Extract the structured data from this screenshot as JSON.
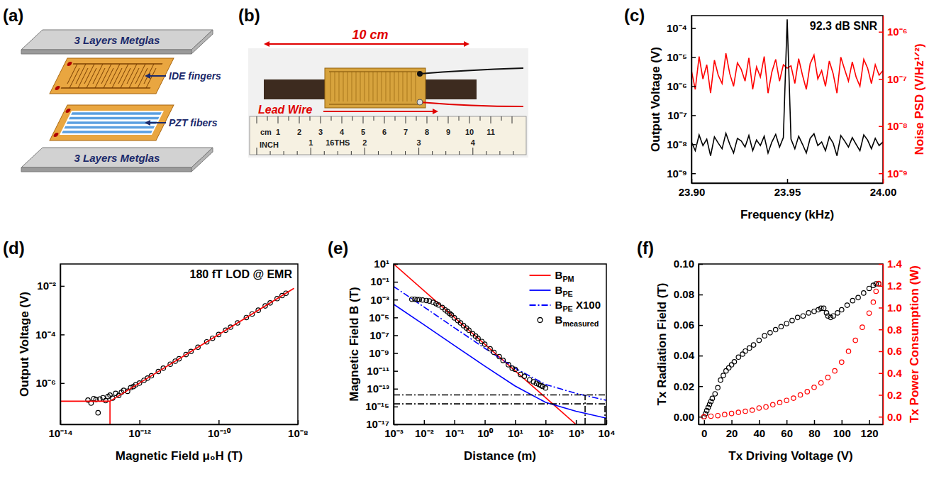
{
  "chart_data": [
    {
      "type": "line",
      "panel_label": "(c)",
      "xlabel": "Frequency (kHz)",
      "ylabel": "Output Voltage (V)",
      "y2label": "Noise PSD (V/Hz¹ᐟ²)",
      "annotations": [
        "92.3 dB SNR"
      ],
      "log": "y",
      "x": [
        23.9,
        23.902,
        23.904,
        23.906,
        23.908,
        23.91,
        23.912,
        23.914,
        23.916,
        23.918,
        23.92,
        23.922,
        23.924,
        23.926,
        23.928,
        23.93,
        23.932,
        23.934,
        23.936,
        23.938,
        23.94,
        23.942,
        23.944,
        23.946,
        23.948,
        23.95,
        23.952,
        23.954,
        23.956,
        23.958,
        23.96,
        23.962,
        23.964,
        23.966,
        23.968,
        23.97,
        23.972,
        23.974,
        23.976,
        23.978,
        23.98,
        23.982,
        23.984,
        23.986,
        23.988,
        23.99,
        23.992,
        23.994,
        23.996,
        23.998,
        24.0
      ],
      "xlim": [
        23.9,
        24.0
      ],
      "xticks": [
        {
          "value": 23.9,
          "label": "23.90"
        },
        {
          "value": 23.95,
          "label": "23.95"
        },
        {
          "value": 24.0,
          "label": "24.00"
        }
      ],
      "ylim": [
        4.6e-10,
        0.00027
      ],
      "yticks": [
        {
          "value": 1e-09,
          "label": "10⁻⁹"
        },
        {
          "value": 1e-08,
          "label": "10⁻⁸"
        },
        {
          "value": 1e-07,
          "label": "10⁻⁷"
        },
        {
          "value": 1e-06,
          "label": "10⁻⁶"
        },
        {
          "value": 1e-05,
          "label": "10⁻⁵"
        },
        {
          "value": 0.0001,
          "label": "10⁻⁴"
        }
      ],
      "y2lim": [
        6.2e-10,
        2.2e-06
      ],
      "y2ticks": [
        {
          "value": 1e-09,
          "label": "10⁻⁹"
        },
        {
          "value": 1e-08,
          "label": "10⁻⁸"
        },
        {
          "value": 1e-07,
          "label": "10⁻⁷"
        },
        {
          "value": 1e-06,
          "label": "10⁻⁶"
        }
      ],
      "series": [
        {
          "color": "#ff0000",
          "axis": "y2",
          "line_style": "solid",
          "values": [
            1.5e-07,
            6e-08,
            3e-07,
            1e-07,
            2e-07,
            5e-08,
            2.5e-07,
            1.2e-07,
            8e-08,
            3.5e-07,
            1.3e-07,
            7e-08,
            2.2e-07,
            1.6e-07,
            9e-08,
            2.8e-07,
            6e-08,
            1.8e-07,
            1.1e-07,
            3e-07,
            5e-08,
            1.4e-07,
            2.6e-07,
            9e-08,
            2e-07,
            1.7e-07,
            1.9e-07,
            8e-08,
            2.7e-07,
            1.2e-07,
            6e-08,
            2.1e-07,
            3.2e-07,
            1e-07,
            1.5e-07,
            7e-08,
            2.4e-07,
            1.3e-07,
            5e-08,
            2.9e-07,
            1.6e-07,
            9e-08,
            2.3e-07,
            1.1e-07,
            7e-08,
            2.6e-07,
            1.7e-07,
            8e-08,
            2e-07,
            1.2e-07,
            1.5e-07
          ]
        },
        {
          "color": "#000000",
          "line_style": "solid",
          "values": [
            1.2e-08,
            6e-09,
            2.1e-08,
            9e-09,
            1.5e-08,
            4e-09,
            1.8e-08,
            1.1e-08,
            7e-09,
            2.4e-08,
            1e-08,
            5e-09,
            1.6e-08,
            1.3e-08,
            8e-09,
            2e-08,
            6e-09,
            1.4e-08,
            9e-09,
            1.9e-08,
            5e-09,
            1.2e-08,
            2.2e-08,
            8e-09,
            1.7e-08,
            0.0002,
            1.5e-08,
            7e-09,
            1.9e-08,
            1e-08,
            5e-09,
            1.6e-08,
            2.3e-08,
            9e-09,
            1.2e-08,
            6e-09,
            1.8e-08,
            1.1e-08,
            4e-09,
            2e-08,
            1.3e-08,
            8e-09,
            1.7e-08,
            1e-08,
            6e-09,
            2.1e-08,
            1.4e-08,
            7e-09,
            1.6e-08,
            9e-09,
            1.2e-08
          ]
        }
      ]
    },
    {
      "type": "scatter",
      "panel_label": "(d)",
      "xlabel": "Magnetic Field μ₀H (T)",
      "ylabel": "Output Voltage (V)",
      "annotations": [
        "180 fT LOD @ EMR"
      ],
      "log": true,
      "xlim": [
        1e-14,
        1e-08
      ],
      "xticks": [
        {
          "value": 1e-14,
          "label": "10⁻¹⁴"
        },
        {
          "value": 1e-12,
          "label": "10⁻¹²"
        },
        {
          "value": 1e-10,
          "label": "10⁻¹⁰"
        },
        {
          "value": 1e-08,
          "label": "10⁻⁸"
        }
      ],
      "ylim": [
        2e-08,
        0.08
      ],
      "yticks": [
        {
          "value": 1e-06,
          "label": "10⁻⁶"
        },
        {
          "value": 0.0001,
          "label": "10⁻⁴"
        },
        {
          "value": 0.01,
          "label": "10⁻²"
        }
      ],
      "series": [
        {
          "color": "#000000",
          "marker": "circle",
          "x": [
            5e-14,
            6e-14,
            7e-14,
            8e-14,
            9e-14,
            1e-13,
            1.2e-13,
            1.4e-13,
            1.6e-13,
            1.8e-13,
            2.1e-13,
            2.5e-13,
            3e-13,
            3.5e-13,
            4e-13,
            5e-13,
            6e-13,
            7e-13,
            8e-13,
            1e-12,
            1.3e-12,
            1.6e-12,
            2e-12,
            3e-12,
            4e-12,
            6e-12,
            8e-12,
            1e-11,
            1.5e-11,
            2e-11,
            3e-11,
            5e-11,
            7e-11,
            1e-10,
            1.5e-10,
            2e-10,
            3e-10,
            5e-10,
            7e-10,
            1e-09,
            1.5e-09,
            2e-09,
            3e-09,
            4e-09,
            5e-09
          ],
          "values": [
            2e-07,
            1.5e-07,
            2.3e-07,
            2.1e-07,
            6e-08,
            2.2e-07,
            2.5e-07,
            1.9e-07,
            2.8e-07,
            3.2e-07,
            2.4e-07,
            3.8e-07,
            3.1e-07,
            4.2e-07,
            5e-07,
            4.6e-07,
            6.5e-07,
            7.2e-07,
            8.5e-07,
            1e-06,
            1.3e-06,
            1.6e-06,
            2e-06,
            3e-06,
            4.1e-06,
            6e-06,
            8e-06,
            1e-05,
            1.5e-05,
            2e-05,
            3e-05,
            5e-05,
            7e-05,
            0.0001,
            0.00015,
            0.0002,
            0.0003,
            0.0005,
            0.0007,
            0.001,
            0.0015,
            0.002,
            0.003,
            0.004,
            0.005
          ]
        },
        {
          "type": "line",
          "color": "#ff0000",
          "line_style": "solid",
          "x": [
            1e-14,
            1.8e-13,
            1.8e-13
          ],
          "values": [
            1.8e-07,
            1.8e-07,
            2e-08
          ]
        },
        {
          "type": "line",
          "color": "#ff0000",
          "line_style": "solid",
          "x": [
            1.8e-13,
            8e-09
          ],
          "values": [
            1.8e-07,
            0.008
          ]
        }
      ]
    },
    {
      "type": "line",
      "panel_label": "(e)",
      "xlabel": "Distance (m)",
      "ylabel": "Magnetic Field B (T)",
      "log": true,
      "legend": "upper right",
      "xlim": [
        0.001,
        10000.0
      ],
      "xticks": [
        {
          "value": 0.001,
          "label": "10⁻³"
        },
        {
          "value": 0.01,
          "label": "10⁻²"
        },
        {
          "value": 0.1,
          "label": "10⁻¹"
        },
        {
          "value": 1,
          "label": "10⁰"
        },
        {
          "value": 10,
          "label": "10¹"
        },
        {
          "value": 100,
          "label": "10²"
        },
        {
          "value": 1000,
          "label": "10³"
        },
        {
          "value": 10000,
          "label": "10⁴"
        }
      ],
      "ylim": [
        1e-17,
        10
      ],
      "yticks": [
        {
          "value": 1e-17,
          "label": "10⁻¹⁷"
        },
        {
          "value": 1e-15,
          "label": "10⁻¹⁵"
        },
        {
          "value": 1e-13,
          "label": "10⁻¹³"
        },
        {
          "value": 1e-11,
          "label": "10⁻¹¹"
        },
        {
          "value": 1e-09,
          "label": "10⁻⁹"
        },
        {
          "value": 1e-07,
          "label": "10⁻⁷"
        },
        {
          "value": 1e-05,
          "label": "10⁻⁵"
        },
        {
          "value": 0.001,
          "label": "10⁻³"
        },
        {
          "value": 0.1,
          "label": "10⁻¹"
        },
        {
          "value": 10,
          "label": "10¹"
        }
      ],
      "series": [
        {
          "name": "BPM",
          "color": "#ff0000",
          "line_style": "solid",
          "x": [
            0.001,
            1000.0
          ],
          "values": [
            10,
            1e-17
          ]
        },
        {
          "name": "BPE",
          "color": "#0000ff",
          "line_style": "solid",
          "x": [
            0.001,
            0.01,
            0.1,
            1,
            10,
            100,
            1000,
            10000
          ],
          "values": [
            0.0003,
            1.5e-06,
            7e-09,
            3.5e-11,
            2e-13,
            3e-15,
            3e-16,
            5e-17
          ]
        },
        {
          "name": "BPE X100",
          "color": "#0000ff",
          "line_style": "dashdot",
          "x": [
            0.001,
            0.01,
            0.1,
            1,
            10,
            100,
            1000,
            10000
          ],
          "values": [
            0.03,
            0.00015,
            7e-07,
            3.5e-09,
            2e-11,
            3e-13,
            3e-14,
            5e-15
          ]
        },
        {
          "name": "Bmeasured",
          "type": "scatter",
          "marker": "circle",
          "color": "#000000",
          "x": [
            0.004,
            0.005,
            0.006,
            0.007,
            0.009,
            0.012,
            0.015,
            0.02,
            0.025,
            0.03,
            0.04,
            0.05,
            0.06,
            0.07,
            0.08,
            0.1,
            0.13,
            0.16,
            0.2,
            0.25,
            0.3,
            0.4,
            0.5,
            0.6,
            0.8,
            1,
            1.5,
            2,
            3,
            4,
            6,
            8,
            10,
            15,
            20,
            30,
            40,
            50,
            60,
            70,
            80,
            100
          ],
          "values": [
            0.0011,
            0.0011,
            0.001,
            0.001,
            0.0009,
            0.0008,
            0.0007,
            0.0005,
            0.00035,
            0.00025,
            0.00013,
            7e-05,
            4.5e-05,
            2.8e-05,
            1.9e-05,
            9e-06,
            4.5e-06,
            2.4e-06,
            1.2e-06,
            6.5e-07,
            3.7e-07,
            1.5e-07,
            8e-08,
            4.5e-08,
            2e-08,
            1e-08,
            3e-09,
            1.2e-09,
            4e-10,
            1.5e-10,
            5e-11,
            2e-11,
            1.5e-11,
            4e-12,
            2.5e-12,
            1e-12,
            6e-13,
            4e-13,
            3e-13,
            2.3e-13,
            1.8e-13,
            1.2e-13
          ]
        },
        {
          "color": "#000000",
          "line_style": "dashdot",
          "x": [
            0.001,
            10000.0
          ],
          "values": [
            2e-14,
            2e-14
          ]
        },
        {
          "color": "#000000",
          "line_style": "dashdot",
          "x": [
            0.001,
            10000.0
          ],
          "values": [
            2e-15,
            2e-15
          ]
        },
        {
          "color": "#000000",
          "line_style": "dashdot",
          "x": [
            2000.0,
            2000.0
          ],
          "values": [
            1e-17,
            2e-14
          ]
        },
        {
          "color": "#000000",
          "line_style": "dashdot",
          "x": [
            9000.0,
            9000.0
          ],
          "values": [
            1e-17,
            2e-15
          ]
        }
      ]
    },
    {
      "type": "scatter",
      "panel_label": "(f)",
      "xlabel": "Tx Driving Voltage (V)",
      "ylabel": "Tx Radiation Field (T)",
      "y2label": "Tx Power Consumption (W)",
      "xlim": [
        -4,
        130
      ],
      "xticks": [
        0,
        20,
        40,
        60,
        80,
        100,
        120
      ],
      "ylim": [
        -0.005,
        0.1
      ],
      "yticks": [
        {
          "value": 0,
          "label": "0.00"
        },
        0.02,
        0.04,
        0.06,
        0.08,
        {
          "value": 0.1,
          "label": "0.10"
        }
      ],
      "y2lim": [
        -0.07,
        1.4
      ],
      "y2ticks": [
        {
          "value": 0,
          "label": "0.0"
        },
        0.2,
        0.4,
        0.6,
        0.8,
        {
          "value": 1,
          "label": "1.0"
        },
        1.2,
        1.4
      ],
      "series": [
        {
          "color": "#000000",
          "marker": "circle",
          "x": [
            0,
            1,
            2,
            3,
            4,
            5,
            6,
            8,
            10,
            12,
            14,
            16,
            18,
            20,
            22,
            25,
            28,
            30,
            33,
            36,
            40,
            44,
            48,
            52,
            56,
            60,
            64,
            68,
            72,
            76,
            80,
            83,
            85,
            87,
            89,
            90,
            92,
            94,
            97,
            100,
            104,
            108,
            112,
            116,
            120,
            123,
            125,
            127
          ],
          "values": [
            0,
            0.002,
            0.004,
            0.006,
            0.008,
            0.01,
            0.012,
            0.015,
            0.019,
            0.024,
            0.027,
            0.03,
            0.032,
            0.034,
            0.036,
            0.039,
            0.041,
            0.043,
            0.045,
            0.047,
            0.05,
            0.053,
            0.055,
            0.057,
            0.059,
            0.061,
            0.063,
            0.065,
            0.066,
            0.068,
            0.069,
            0.07,
            0.071,
            0.071,
            0.068,
            0.066,
            0.065,
            0.066,
            0.068,
            0.07,
            0.073,
            0.076,
            0.078,
            0.081,
            0.084,
            0.086,
            0.087,
            0.087
          ]
        },
        {
          "color": "#ff0000",
          "marker": "circle",
          "axis": "y2",
          "x": [
            0,
            5,
            10,
            15,
            20,
            25,
            30,
            35,
            40,
            45,
            50,
            55,
            60,
            65,
            70,
            75,
            80,
            85,
            90,
            95,
            100,
            105,
            110,
            115,
            120,
            123,
            125,
            127
          ],
          "values": [
            0,
            0.005,
            0.01,
            0.02,
            0.03,
            0.04,
            0.05,
            0.06,
            0.08,
            0.09,
            0.11,
            0.13,
            0.15,
            0.17,
            0.2,
            0.23,
            0.27,
            0.31,
            0.36,
            0.42,
            0.5,
            0.6,
            0.7,
            0.82,
            0.95,
            1.05,
            1.15,
            1.22
          ]
        }
      ]
    }
  ],
  "diagram": {
    "panel_label": "(a)",
    "labels": [
      "3 Layers Metglas",
      "IDE fingers",
      "PZT fibers",
      "3 Layers Metglas"
    ]
  },
  "photo": {
    "panel_label": "(b)",
    "dimension": "10 cm",
    "wire_label": "Lead Wire",
    "ruler": {
      "cm_unit": "cm",
      "cm_numbers": [
        1,
        2,
        3,
        4,
        5,
        6,
        7,
        8,
        9,
        10,
        11
      ],
      "inch_unit": "INCH",
      "inch_numbers": [
        1,
        2,
        3,
        4
      ],
      "brand": "16THS"
    }
  }
}
